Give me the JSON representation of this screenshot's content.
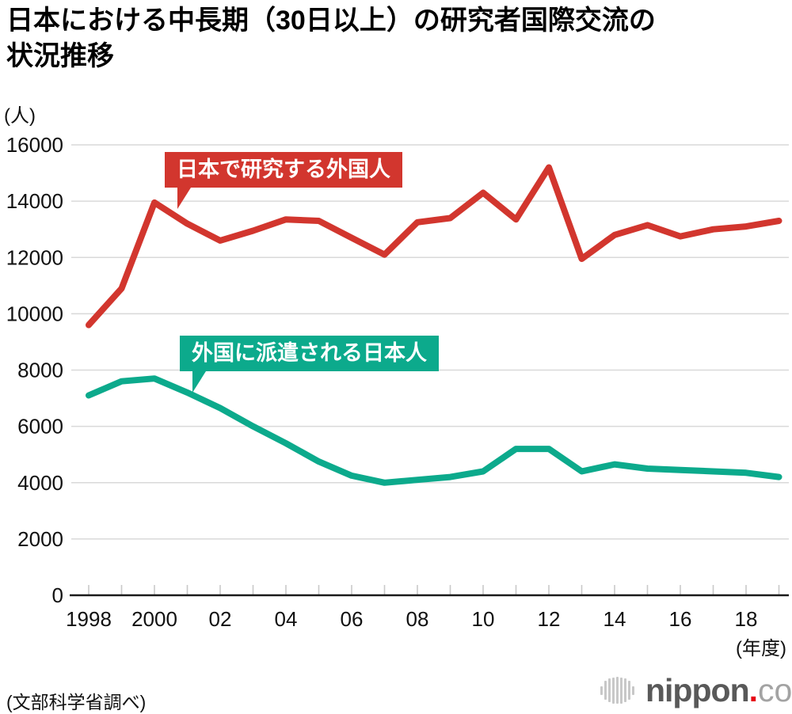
{
  "header": {
    "title_lines": [
      "日本における中長期（30日以上）の研究者国際交流の",
      "状況推移"
    ]
  },
  "axes": {
    "y_unit": "(人)",
    "x_unit": "(年度)"
  },
  "chart_data": {
    "type": "line",
    "title": "日本における中長期（30日以上）の研究者国際交流の状況推移",
    "xlabel": "(年度)",
    "ylabel": "(人)",
    "ylim": [
      0,
      16000
    ],
    "y_tick_step": 2000,
    "grid": "horizontal",
    "legend_position": "inline-callouts",
    "x": [
      1998,
      1999,
      2000,
      2001,
      2002,
      2003,
      2004,
      2005,
      2006,
      2007,
      2008,
      2009,
      2010,
      2011,
      2012,
      2013,
      2014,
      2015,
      2016,
      2017,
      2018,
      2019
    ],
    "x_tick_labels": [
      {
        "x": 1998,
        "label": "1998"
      },
      {
        "x": 2000,
        "label": "2000"
      },
      {
        "x": 2002,
        "label": "02"
      },
      {
        "x": 2004,
        "label": "04"
      },
      {
        "x": 2006,
        "label": "06"
      },
      {
        "x": 2008,
        "label": "08"
      },
      {
        "x": 2010,
        "label": "10"
      },
      {
        "x": 2012,
        "label": "12"
      },
      {
        "x": 2014,
        "label": "14"
      },
      {
        "x": 2016,
        "label": "16"
      },
      {
        "x": 2018,
        "label": "18"
      }
    ],
    "series": [
      {
        "name": "日本で研究する外国人",
        "color": "#d2362e",
        "values": [
          9600,
          10900,
          13950,
          13200,
          12600,
          12950,
          13350,
          13300,
          12700,
          12100,
          13250,
          13400,
          14300,
          13350,
          15200,
          11950,
          12800,
          13150,
          12750,
          13000,
          13100,
          13300
        ]
      },
      {
        "name": "外国に派遣される日本人",
        "color": "#0caa8c",
        "values": [
          7100,
          7600,
          7700,
          7200,
          6650,
          6000,
          5400,
          4750,
          4250,
          4000,
          4100,
          4200,
          4400,
          5200,
          5200,
          4400,
          4650,
          4500,
          4450,
          4400,
          4350,
          4200
        ]
      }
    ]
  },
  "footer": {
    "source": "(文部科学省調べ)",
    "logo": {
      "word": "nippon",
      "dot": ".",
      "tld": "com"
    }
  },
  "colors": {
    "red": "#d2362e",
    "green": "#0caa8c",
    "grid": "#d9d9d9",
    "tick": "#c9c9c9",
    "axis": "#1a1a1a",
    "text": "#111111",
    "logo_gray": "#595959",
    "logo_light": "#a3a3a3",
    "logo_dot": "#e60012",
    "logo_mark": "#c8c8c8"
  }
}
